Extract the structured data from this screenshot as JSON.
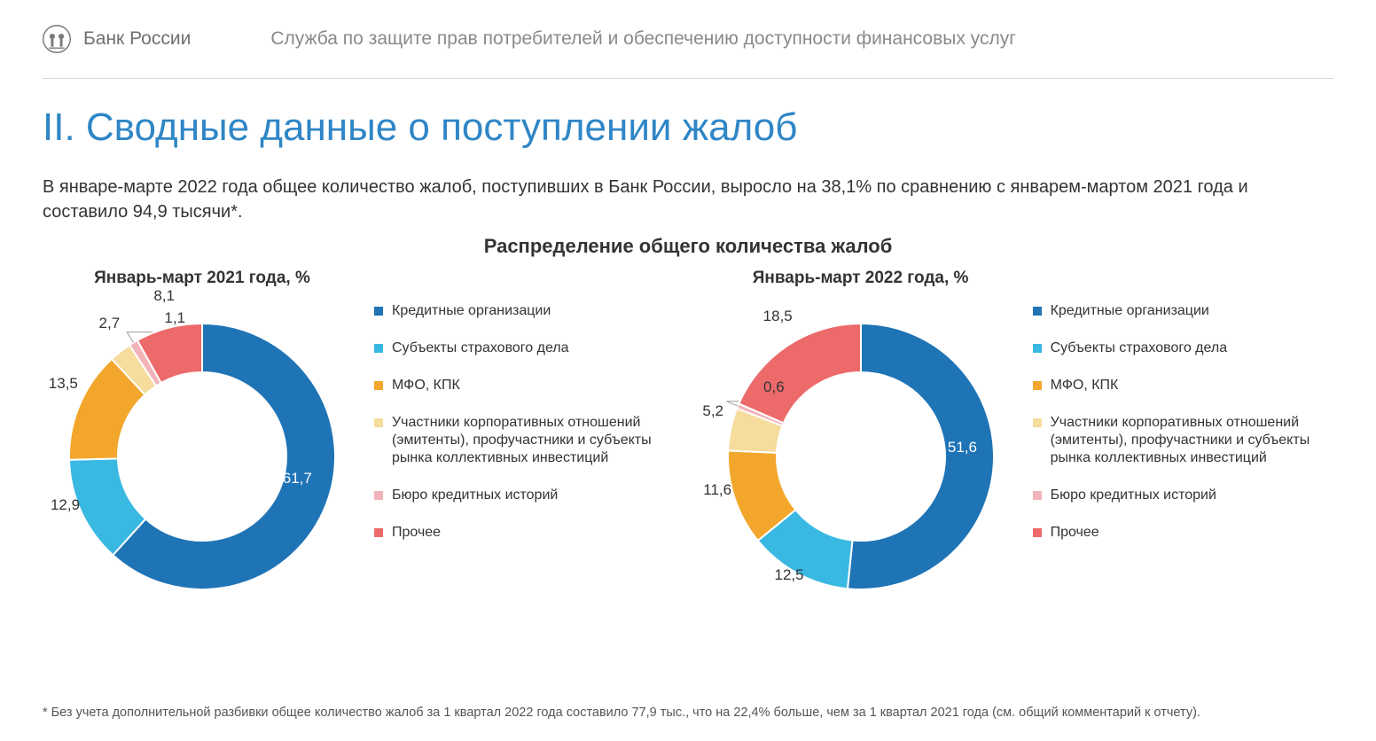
{
  "header": {
    "brand": "Банк России",
    "department": "Служба по защите прав потребителей и обеспечению доступности финансовых услуг",
    "logo_color": "#7a7a7a"
  },
  "title": {
    "text": "II. Сводные данные о поступлении жалоб",
    "color": "#2f86c6"
  },
  "intro": "В январе-марте 2022 года общее количество жалоб, поступивших в Банк России, выросло на 38,1% по сравнению с январем-мартом 2021 года и составило 94,9 тысячи*.",
  "charts": {
    "headline": "Распределение общего количества жалоб",
    "donut": {
      "outer_r": 150,
      "inner_r": 95,
      "gap_deg": 0,
      "start_angle_deg": 0,
      "label_r": 170,
      "big_slice_label_r": 115,
      "label_fontsize": 17
    },
    "legend_items": [
      {
        "label": "Кредитные организации",
        "color": "#1f74b6"
      },
      {
        "label": "Субъекты страхового дела",
        "color": "#39b8e2"
      },
      {
        "label": "МФО, КПК",
        "color": "#f2a72c"
      },
      {
        "label": "Участники корпоративных отношений (эмитенты), профучастники и субъекты рынка коллективных инвестиций",
        "color": "#f6dc9d"
      },
      {
        "label": "Бюро кредитных историй",
        "color": "#f2b4b9"
      },
      {
        "label": "Прочее",
        "color": "#ed6a6a"
      }
    ],
    "left": {
      "title": "Январь-март 2021 года, %",
      "slices": [
        {
          "value": 61.7,
          "label": "61,7",
          "color": "#1f74b6"
        },
        {
          "value": 12.9,
          "label": "12,9",
          "color": "#39b8e2"
        },
        {
          "value": 13.5,
          "label": "13,5",
          "color": "#f2a72c"
        },
        {
          "value": 2.7,
          "label": "2,7",
          "color": "#f6dc9d"
        },
        {
          "value": 1.1,
          "label": "1,1",
          "color": "#f2b4b9",
          "leader": true
        },
        {
          "value": 8.1,
          "label": "8,1",
          "color": "#ed6a6a"
        }
      ]
    },
    "right": {
      "title": "Январь-март 2022 года, %",
      "slices": [
        {
          "value": 51.6,
          "label": "51,6",
          "color": "#1f74b6"
        },
        {
          "value": 12.5,
          "label": "12,5",
          "color": "#39b8e2"
        },
        {
          "value": 11.6,
          "label": "11,6",
          "color": "#f2a72c"
        },
        {
          "value": 5.2,
          "label": "5,2",
          "color": "#f6dc9d"
        },
        {
          "value": 0.6,
          "label": "0,6",
          "color": "#f2b4b9",
          "leader": true
        },
        {
          "value": 18.5,
          "label": "18,5",
          "color": "#ed6a6a"
        }
      ]
    }
  },
  "footnote": "* Без учета дополнительной разбивки общее количество жалоб за 1 квартал 2022 года составило 77,9 тыс., что на 22,4% больше, чем за 1 квартал 2021 года (см. общий комментарий к отчету)."
}
